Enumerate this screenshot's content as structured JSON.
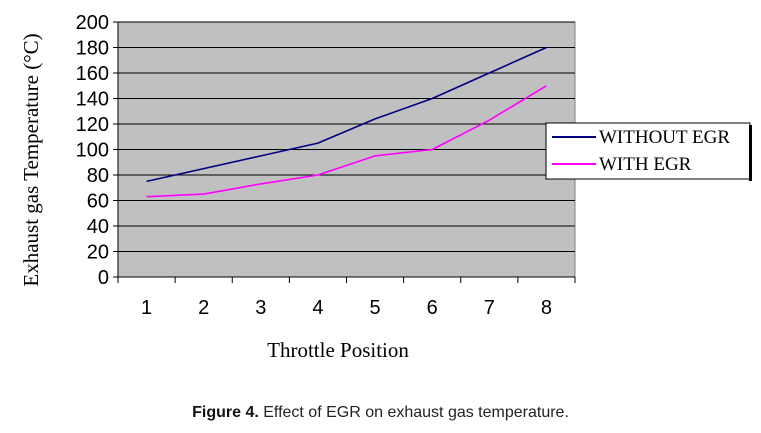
{
  "chart_data": {
    "type": "line",
    "x": [
      1,
      2,
      3,
      4,
      5,
      6,
      7,
      8
    ],
    "series": [
      {
        "name": "WITHOUT EGR",
        "values": [
          75,
          85,
          95,
          105,
          124,
          140,
          160,
          180
        ],
        "color": "#000080"
      },
      {
        "name": "WITH EGR",
        "values": [
          63,
          65,
          73,
          80,
          95,
          100,
          123,
          150
        ],
        "color": "#ff00ff"
      }
    ],
    "xlabel": "Throttle Position",
    "ylabel": "Exhaust gas Temperature (°C)",
    "ylim": [
      0,
      200
    ],
    "yticks": [
      0,
      20,
      40,
      60,
      80,
      100,
      120,
      140,
      160,
      180,
      200
    ],
    "xticks": [
      1,
      2,
      3,
      4,
      5,
      6,
      7,
      8
    ],
    "grid": true,
    "plot_background": "#c0c0c0",
    "legend_position": "right"
  },
  "caption": {
    "label": "Figure 4.",
    "text": " Effect of EGR on exhaust gas temperature."
  }
}
